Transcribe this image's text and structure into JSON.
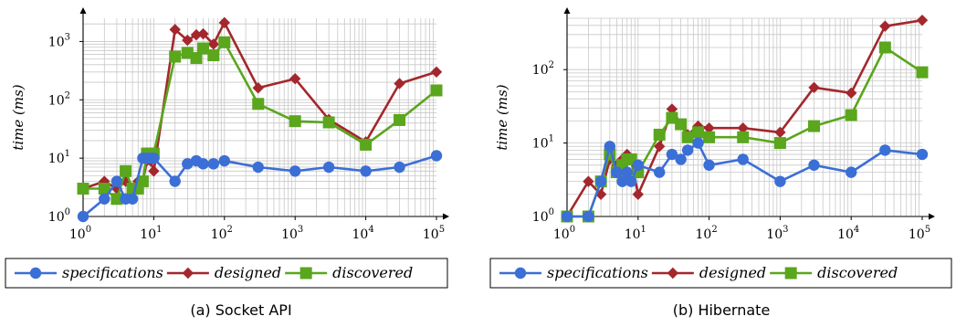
{
  "colors": {
    "specifications": "#3b6fd6",
    "designed": "#a3272c",
    "discovered": "#5aa61c"
  },
  "chart_data": [
    {
      "type": "line",
      "caption": "(a) Socket API",
      "ylabel": "time (ms)",
      "ylabel_word": "time",
      "ylabel_unit": "ms",
      "xscale": "log",
      "yscale": "log",
      "xlim": [
        1,
        100000
      ],
      "ylim": [
        1,
        2500
      ],
      "xticks": [
        [
          "10",
          "0"
        ],
        [
          "10",
          "1"
        ],
        [
          "10",
          "2"
        ],
        [
          "10",
          "3"
        ],
        [
          "10",
          "4"
        ],
        [
          "10",
          "5"
        ]
      ],
      "yticks": [
        [
          "10",
          "0"
        ],
        [
          "10",
          "1"
        ],
        [
          "10",
          "2"
        ],
        [
          "10",
          "3"
        ]
      ],
      "grid": true,
      "legend": "bottom",
      "series": [
        {
          "name": "specifications",
          "marker": "circle",
          "x": [
            1,
            2,
            3,
            4,
            5,
            7,
            8,
            9,
            10,
            20,
            30,
            40,
            50,
            70,
            100,
            300,
            1000,
            3000,
            10000,
            30000,
            100000
          ],
          "y": [
            1,
            2,
            4,
            2,
            2,
            10,
            10,
            10,
            10,
            4,
            8,
            9,
            8,
            8,
            9,
            7,
            6,
            7,
            6,
            7,
            11
          ]
        },
        {
          "name": "designed",
          "marker": "diamond",
          "x": [
            1,
            2,
            3,
            4,
            5,
            6,
            7,
            8,
            9,
            10,
            20,
            30,
            40,
            50,
            70,
            100,
            300,
            1000,
            3000,
            10000,
            30000,
            100000
          ],
          "y": [
            3,
            4,
            3,
            4,
            3,
            4,
            4,
            9,
            9,
            6,
            1600,
            1050,
            1300,
            1350,
            900,
            2100,
            160,
            230,
            46,
            19,
            190,
            300
          ]
        },
        {
          "name": "discovered",
          "marker": "square",
          "x": [
            1,
            2,
            3,
            4,
            5,
            6,
            7,
            8,
            9,
            10,
            20,
            30,
            40,
            50,
            70,
            100,
            300,
            1000,
            3000,
            10000,
            30000,
            100000
          ],
          "y": [
            3,
            3,
            2,
            6,
            3,
            3,
            4,
            12,
            12,
            12,
            550,
            640,
            520,
            760,
            580,
            970,
            85,
            43,
            41,
            17,
            45,
            145
          ]
        }
      ]
    },
    {
      "type": "line",
      "caption": "(b) Hibernate",
      "ylabel": "time (ms)",
      "ylabel_word": "time",
      "ylabel_unit": "ms",
      "xscale": "log",
      "yscale": "log",
      "xlim": [
        1,
        100000
      ],
      "ylim": [
        1,
        500
      ],
      "xticks": [
        [
          "10",
          "0"
        ],
        [
          "10",
          "1"
        ],
        [
          "10",
          "2"
        ],
        [
          "10",
          "3"
        ],
        [
          "10",
          "4"
        ],
        [
          "10",
          "5"
        ]
      ],
      "yticks": [
        [
          "10",
          "0"
        ],
        [
          "10",
          "1"
        ],
        [
          "10",
          "2"
        ]
      ],
      "grid": true,
      "legend": "bottom",
      "series": [
        {
          "name": "specifications",
          "marker": "circle",
          "x": [
            1,
            2,
            3,
            4,
            5,
            6,
            7,
            8,
            10,
            20,
            30,
            40,
            50,
            70,
            100,
            300,
            1000,
            3000,
            10000,
            30000,
            100000
          ],
          "y": [
            1,
            1,
            3,
            9,
            4,
            3,
            4,
            3,
            5,
            4,
            7,
            6,
            8,
            10,
            5,
            6,
            3,
            5,
            4,
            8,
            7
          ]
        },
        {
          "name": "designed",
          "marker": "diamond",
          "x": [
            1,
            2,
            3,
            4,
            5,
            6,
            7,
            8,
            10,
            20,
            30,
            40,
            50,
            70,
            100,
            300,
            1000,
            3000,
            10000,
            30000,
            100000
          ],
          "y": [
            1,
            3,
            2,
            6,
            5,
            6,
            7,
            6,
            2,
            9,
            29,
            18,
            13,
            17,
            16,
            16,
            14,
            57,
            48,
            390,
            470
          ]
        },
        {
          "name": "discovered",
          "marker": "square",
          "x": [
            1,
            2,
            3,
            4,
            5,
            6,
            7,
            8,
            10,
            20,
            30,
            40,
            50,
            70,
            100,
            300,
            1000,
            3000,
            10000,
            30000,
            100000
          ],
          "y": [
            1,
            1,
            3,
            7,
            4,
            5,
            6,
            6,
            4,
            13,
            22,
            18,
            12,
            14,
            12,
            12,
            10,
            17,
            24,
            200,
            92
          ]
        }
      ]
    }
  ]
}
